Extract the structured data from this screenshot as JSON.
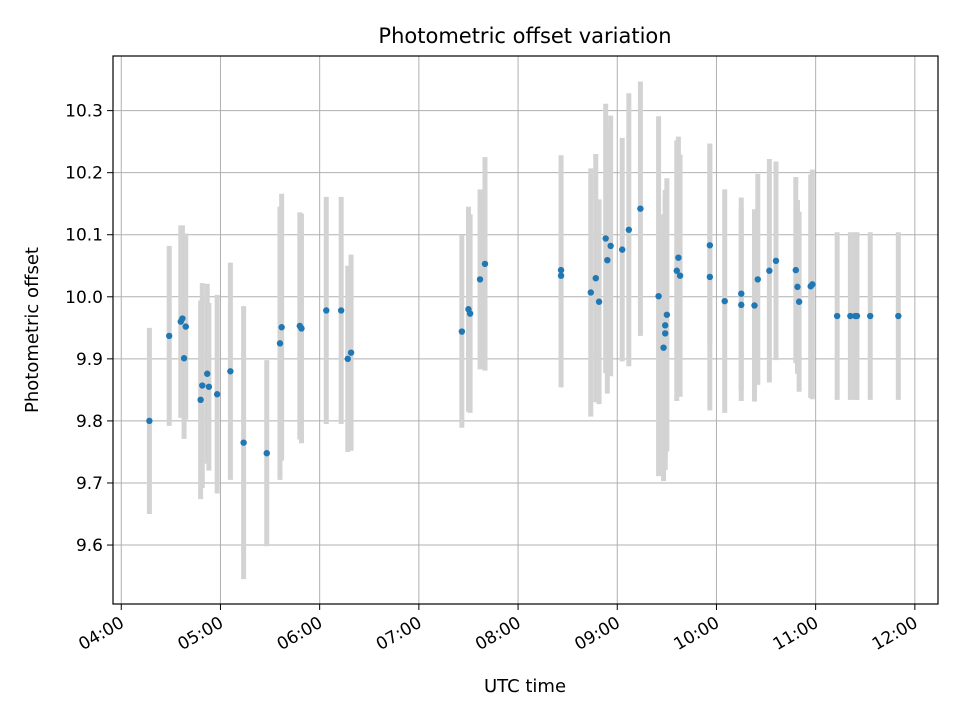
{
  "chart_data": {
    "type": "scatter",
    "title": "Photometric offset variation",
    "xlabel": "UTC time",
    "ylabel": "Photometric offset",
    "xlim": [
      "03:55",
      "12:14"
    ],
    "ylim": [
      9.505,
      10.388
    ],
    "x_ticks": [
      "04:00",
      "05:00",
      "06:00",
      "07:00",
      "08:00",
      "09:00",
      "10:00",
      "11:00",
      "12:00"
    ],
    "y_ticks": [
      "9.6",
      "9.7",
      "9.8",
      "9.9",
      "10.0",
      "10.1",
      "10.2",
      "10.3"
    ],
    "grid": true,
    "colors": {
      "points": "#1f77b4",
      "errorbars": "#d3d3d3",
      "grid": "#b0b0b0"
    },
    "series": [
      {
        "x": [
          "04:17",
          "04:29",
          "04:36",
          "04:37",
          "04:38",
          "04:39",
          "04:48",
          "04:49",
          "04:52",
          "04:53",
          "04:58",
          "05:06",
          "05:14",
          "05:28",
          "05:36",
          "05:37",
          "05:48",
          "05:49",
          "06:04",
          "06:13",
          "06:17",
          "06:19",
          "07:26",
          "07:30",
          "07:31",
          "07:37",
          "07:40",
          "08:26",
          "08:26",
          "08:44",
          "08:47",
          "08:49",
          "08:53",
          "08:54",
          "08:56",
          "09:03",
          "09:07",
          "09:14",
          "09:25",
          "09:28",
          "09:29",
          "09:29",
          "09:30",
          "09:36",
          "09:37",
          "09:38",
          "09:56",
          "09:56",
          "10:05",
          "10:15",
          "10:15",
          "10:23",
          "10:25",
          "10:32",
          "10:36",
          "10:48",
          "10:49",
          "10:50",
          "10:57",
          "10:58",
          "11:13",
          "11:21",
          "11:24",
          "11:25",
          "11:33",
          "11:50"
        ],
        "y": [
          9.8,
          9.937,
          9.96,
          9.965,
          9.901,
          9.952,
          9.834,
          9.857,
          9.876,
          9.855,
          9.843,
          9.88,
          9.765,
          9.748,
          9.925,
          9.951,
          9.953,
          9.949,
          9.978,
          9.978,
          9.9,
          9.91,
          9.944,
          9.98,
          9.973,
          10.028,
          10.053,
          10.043,
          10.034,
          10.007,
          10.03,
          9.992,
          10.094,
          10.059,
          10.082,
          10.076,
          10.108,
          10.142,
          10.001,
          9.918,
          9.954,
          9.941,
          9.971,
          10.042,
          10.063,
          10.034,
          10.032,
          10.083,
          9.993,
          10.005,
          9.987,
          9.986,
          10.028,
          10.042,
          10.058,
          10.043,
          10.016,
          9.992,
          10.017,
          10.02,
          9.969,
          9.969,
          9.969,
          9.969,
          9.969,
          9.969
        ],
        "yerr": [
          0.15,
          0.145,
          0.155,
          0.15,
          0.13,
          0.15,
          0.16,
          0.165,
          0.145,
          0.135,
          0.16,
          0.175,
          0.22,
          0.15,
          0.22,
          0.215,
          0.183,
          0.185,
          0.183,
          0.183,
          0.15,
          0.158,
          0.155,
          0.165,
          0.16,
          0.145,
          0.172,
          0.185,
          0.18,
          0.2,
          0.2,
          0.165,
          0.217,
          0.215,
          0.21,
          0.18,
          0.22,
          0.205,
          0.29,
          0.215,
          0.218,
          0.22,
          0.22,
          0.21,
          0.195,
          0.195,
          0.215,
          0.16,
          0.18,
          0.155,
          0.155,
          0.155,
          0.17,
          0.18,
          0.16,
          0.15,
          0.14,
          0.145,
          0.18,
          0.185,
          0.135,
          0.135,
          0.135,
          0.135,
          0.135,
          0.135
        ]
      }
    ]
  }
}
